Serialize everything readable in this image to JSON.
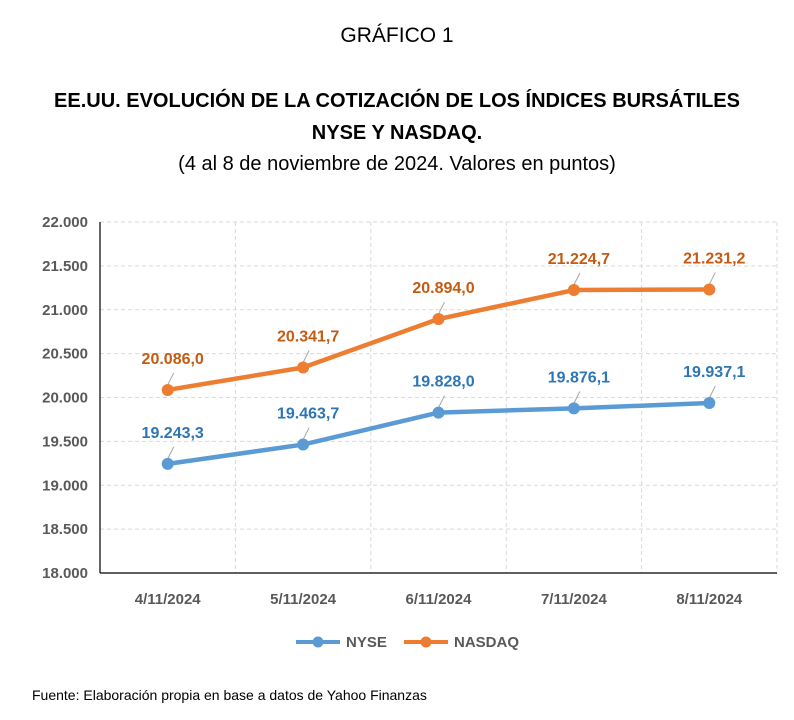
{
  "figure_label": "GRÁFICO 1",
  "title_line1": "EE.UU. EVOLUCIÓN DE LA COTIZACIÓN DE LOS ÍNDICES BURSÁTILES",
  "title_line2": "NYSE Y NASDAQ.",
  "subtitle": "(4 al 8 de noviembre de 2024. Valores en puntos)",
  "source": "Fuente: Elaboración propia en base a datos de Yahoo Finanzas",
  "colors": {
    "nyse": "#5B9BD5",
    "nasdaq": "#ED7D31",
    "nyse_label": "#2E75B6",
    "nasdaq_label": "#C55A11",
    "grid": "#D9D9D9"
  },
  "chart_data": {
    "type": "line",
    "categories": [
      "4/11/2024",
      "5/11/2024",
      "6/11/2024",
      "7/11/2024",
      "8/11/2024"
    ],
    "ylim": [
      18000,
      22000
    ],
    "yticks": [
      18000,
      18500,
      19000,
      19500,
      20000,
      20500,
      21000,
      21500,
      22000
    ],
    "ytick_labels": [
      "18.000",
      "18.500",
      "19.000",
      "19.500",
      "20.000",
      "20.500",
      "21.000",
      "21.500",
      "22.000"
    ],
    "grid": true,
    "legend_position": "bottom",
    "series": [
      {
        "name": "NYSE",
        "values": [
          19243.3,
          19463.7,
          19828.0,
          19876.1,
          19937.1
        ],
        "labels": [
          "19.243,3",
          "19.463,7",
          "19.828,0",
          "19.876,1",
          "19.937,1"
        ]
      },
      {
        "name": "NASDAQ",
        "values": [
          20086.0,
          20341.7,
          20894.0,
          21224.7,
          21231.2
        ],
        "labels": [
          "20.086,0",
          "20.341,7",
          "20.894,0",
          "21.224,7",
          "21.231,2"
        ]
      }
    ]
  }
}
